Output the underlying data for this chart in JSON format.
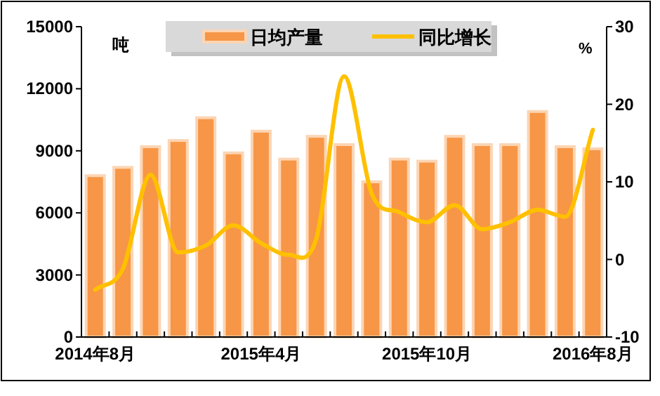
{
  "chart_data": {
    "type": "bar",
    "ylabel": "吨",
    "y2label": "%",
    "categories": [
      "2014年8月",
      null,
      null,
      null,
      null,
      null,
      "2015年4月",
      null,
      null,
      null,
      null,
      null,
      "2015年10月",
      null,
      null,
      null,
      null,
      null,
      "2016年8月"
    ],
    "series": [
      {
        "name": "日均产量",
        "color": "#f79646",
        "values": [
          7800,
          8200,
          9200,
          9500,
          10600,
          8900,
          9950,
          8600,
          9700,
          9300,
          7500,
          8600,
          8500,
          9700,
          9300,
          9300,
          10900,
          9200,
          9100
        ]
      },
      {
        "name": "同比增长",
        "type": "line",
        "axis": "y2",
        "color": "#ffc000",
        "values": [
          -3.9,
          -1.2,
          10.9,
          0.9,
          1.8,
          4.4,
          2.1,
          0.6,
          2.7,
          23.6,
          8.5,
          6.1,
          4.8,
          7.0,
          3.9,
          4.8,
          6.4,
          5.5,
          16.7
        ]
      }
    ],
    "ylim": [
      0,
      15000
    ],
    "yticks": [
      0,
      3000,
      6000,
      9000,
      12000,
      15000
    ],
    "y2lim": [
      -10,
      30
    ],
    "y2ticks": [
      -10,
      0,
      10,
      20,
      30
    ],
    "legend": "top",
    "grid": false,
    "marker": "none",
    "line_style": "solid"
  }
}
